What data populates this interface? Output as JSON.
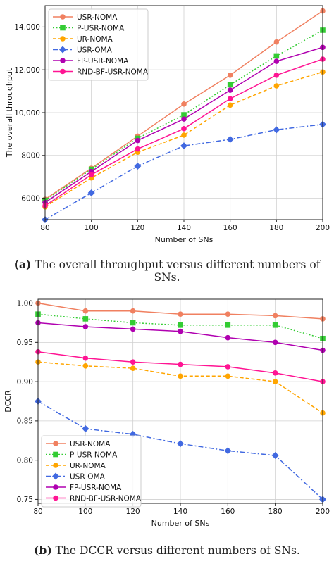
{
  "figures": [
    {
      "caption_tag": "(a)",
      "caption_text": " The overall throughput versus different numbers of SNs.",
      "chart_data": {
        "type": "line",
        "x": [
          80,
          100,
          120,
          140,
          160,
          180,
          200
        ],
        "xlabel": "Number of SNs",
        "ylabel": "The overall throughput",
        "xlim": [
          80,
          200
        ],
        "ylim": [
          5000,
          15000
        ],
        "yticks": [
          6000,
          8000,
          10000,
          12000,
          14000
        ],
        "yticklabels": [
          "6000",
          "8000",
          "10,000",
          "12,000",
          "14,000"
        ],
        "xticks": [
          80,
          100,
          120,
          140,
          160,
          180,
          200
        ],
        "grid": true,
        "legend_position": "top-left",
        "series": [
          {
            "name": "USR-NOMA",
            "color": "#f08060",
            "dash": "solid",
            "marker": "circle",
            "values": [
              5950,
              7400,
              8900,
              10400,
              11750,
              13300,
              14750
            ]
          },
          {
            "name": "P-USR-NOMA",
            "color": "#33cc33",
            "dash": "dotted",
            "marker": "square",
            "values": [
              5900,
              7350,
              8800,
              9900,
              11300,
              12650,
              13850
            ]
          },
          {
            "name": "UR-NOMA",
            "color": "#ffa500",
            "dash": "dashed",
            "marker": "circle",
            "values": [
              5600,
              6950,
              8150,
              8950,
              10350,
              11250,
              11900
            ]
          },
          {
            "name": "USR-OMA",
            "color": "#4169e1",
            "dash": "dashdot",
            "marker": "diamond",
            "values": [
              5000,
              6250,
              7500,
              8450,
              8750,
              9200,
              9450
            ]
          },
          {
            "name": "FP-USR-NOMA",
            "color": "#b000b0",
            "dash": "solid",
            "marker": "circle",
            "values": [
              5800,
              7250,
              8700,
              9700,
              11050,
              12400,
              13050
            ]
          },
          {
            "name": "RND-BF-USR-NOMA",
            "color": "#ff1493",
            "dash": "solid",
            "marker": "circle",
            "values": [
              5650,
              7100,
              8300,
              9250,
              10650,
              11750,
              12500
            ]
          }
        ]
      }
    },
    {
      "caption_tag": "(b)",
      "caption_text": " The DCCR versus different numbers of SNs.",
      "chart_data": {
        "type": "line",
        "x": [
          80,
          100,
          120,
          140,
          160,
          180,
          200
        ],
        "xlabel": "Number of SNs",
        "ylabel": "DCCR",
        "xlim": [
          80,
          200
        ],
        "ylim": [
          0.745,
          1.005
        ],
        "yticks": [
          0.75,
          0.8,
          0.85,
          0.9,
          0.95,
          1.0
        ],
        "yticklabels": [
          "0.75",
          "0.80",
          "0.85",
          "0.90",
          "0.95",
          "1.00"
        ],
        "xticks": [
          80,
          100,
          120,
          140,
          160,
          180,
          200
        ],
        "grid": true,
        "legend_position": "lower-left",
        "series": [
          {
            "name": "USR-NOMA",
            "color": "#f08060",
            "dash": "solid",
            "marker": "circle",
            "values": [
              1.0,
              0.99,
              0.99,
              0.986,
              0.986,
              0.984,
              0.98
            ]
          },
          {
            "name": "P-USR-NOMA",
            "color": "#33cc33",
            "dash": "dotted",
            "marker": "square",
            "values": [
              0.986,
              0.98,
              0.975,
              0.972,
              0.972,
              0.972,
              0.955
            ]
          },
          {
            "name": "UR-NOMA",
            "color": "#ffa500",
            "dash": "dashed",
            "marker": "circle",
            "values": [
              0.925,
              0.92,
              0.917,
              0.907,
              0.907,
              0.9,
              0.86
            ]
          },
          {
            "name": "USR-OMA",
            "color": "#4169e1",
            "dash": "dashdot",
            "marker": "diamond",
            "values": [
              0.875,
              0.84,
              0.833,
              0.821,
              0.812,
              0.806,
              0.75
            ]
          },
          {
            "name": "FP-USR-NOMA",
            "color": "#b000b0",
            "dash": "solid",
            "marker": "circle",
            "values": [
              0.975,
              0.97,
              0.967,
              0.964,
              0.956,
              0.95,
              0.94
            ]
          },
          {
            "name": "RND-BF-USR-NOMA",
            "color": "#ff1493",
            "dash": "solid",
            "marker": "circle",
            "values": [
              0.938,
              0.93,
              0.925,
              0.922,
              0.919,
              0.911,
              0.9
            ]
          }
        ]
      }
    }
  ]
}
